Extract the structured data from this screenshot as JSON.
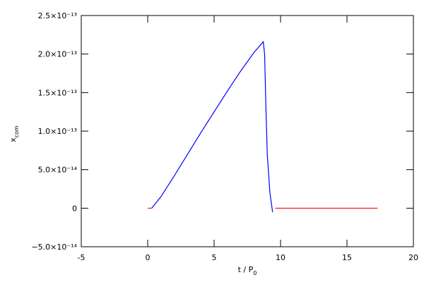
{
  "chart_data": {
    "type": "line",
    "xlabel": {
      "main": "t / P",
      "sub": "0"
    },
    "ylabel": {
      "main": "x",
      "sub": "com"
    },
    "x": [
      0,
      0.3,
      1,
      2,
      3,
      4,
      5,
      6,
      7,
      8,
      8.7,
      8.8,
      8.9,
      9.0,
      9.2,
      9.4,
      9.6,
      17.3
    ],
    "series": [
      {
        "color": "#0000ff",
        "values": [
          null,
          0,
          1.5e-14,
          4.2e-14,
          7e-14,
          9.8e-14,
          1.25e-13,
          1.52e-13,
          1.78e-13,
          2.02e-13,
          2.16e-13,
          2e-13,
          1.3e-13,
          7e-14,
          2e-14,
          -5e-15,
          null,
          null
        ]
      },
      {
        "color": "#ff0000",
        "values": [
          0,
          0,
          null,
          null,
          null,
          null,
          null,
          null,
          null,
          null,
          null,
          null,
          null,
          null,
          null,
          null,
          0,
          0
        ]
      }
    ],
    "xlim": [
      -5,
      20
    ],
    "xticks": [
      -5,
      0,
      5,
      10,
      15,
      20
    ],
    "ylim": [
      -5e-14,
      2.5e-13
    ],
    "yticks": [
      {
        "value": -5e-14,
        "label": "−5.0×10⁻¹⁴"
      },
      0,
      {
        "value": 5e-14,
        "label": "5.0×10⁻¹⁴"
      },
      {
        "value": 1e-13,
        "label": "1.0×10⁻¹³"
      },
      {
        "value": 1.5e-13,
        "label": "1.5×10⁻¹³"
      },
      {
        "value": 2e-13,
        "label": "2.0×10⁻¹³"
      },
      {
        "value": 2.5e-13,
        "label": "2.5×10⁻¹³"
      }
    ]
  }
}
